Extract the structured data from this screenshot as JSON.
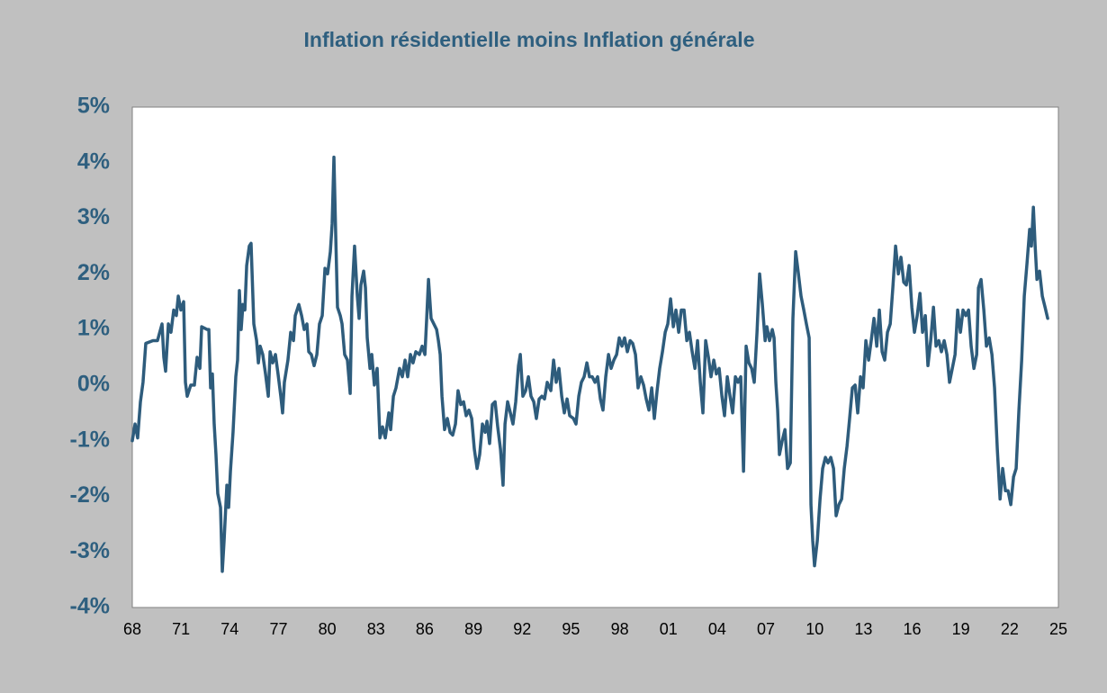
{
  "chart_data": {
    "type": "line",
    "title": "Inflation résidentielle moins Inflation générale",
    "color": "#2e5c7c",
    "grid": false,
    "xlim": [
      1968,
      2025
    ],
    "xticks": [
      {
        "value": 1968,
        "label": "68"
      },
      {
        "value": 1971,
        "label": "71"
      },
      {
        "value": 1974,
        "label": "74"
      },
      {
        "value": 1977,
        "label": "77"
      },
      {
        "value": 1980,
        "label": "80"
      },
      {
        "value": 1983,
        "label": "83"
      },
      {
        "value": 1986,
        "label": "86"
      },
      {
        "value": 1989,
        "label": "89"
      },
      {
        "value": 1992,
        "label": "92"
      },
      {
        "value": 1995,
        "label": "95"
      },
      {
        "value": 1998,
        "label": "98"
      },
      {
        "value": 2001,
        "label": "01"
      },
      {
        "value": 2004,
        "label": "04"
      },
      {
        "value": 2007,
        "label": "07"
      },
      {
        "value": 2010,
        "label": "10"
      },
      {
        "value": 2013,
        "label": "13"
      },
      {
        "value": 2016,
        "label": "16"
      },
      {
        "value": 2019,
        "label": "19"
      },
      {
        "value": 2022,
        "label": "22"
      },
      {
        "value": 2025,
        "label": "25"
      }
    ],
    "ylim": [
      -4,
      5
    ],
    "yticks": [
      {
        "value": 5,
        "label": "5%"
      },
      {
        "value": 4,
        "label": "4%"
      },
      {
        "value": 3,
        "label": "3%"
      },
      {
        "value": 2,
        "label": "2%"
      },
      {
        "value": 1,
        "label": "1%"
      },
      {
        "value": 0,
        "label": "0%"
      },
      {
        "value": -1,
        "label": "-1%"
      },
      {
        "value": -2,
        "label": "-2%"
      },
      {
        "value": -3,
        "label": "-3%"
      },
      {
        "value": -4,
        "label": "-4%"
      }
    ],
    "x": [
      1968.0,
      1968.17,
      1968.33,
      1968.5,
      1968.66,
      1968.83,
      1969.27,
      1969.55,
      1969.83,
      1969.94,
      1970.05,
      1970.22,
      1970.38,
      1970.55,
      1970.71,
      1970.83,
      1970.99,
      1971.16,
      1971.27,
      1971.38,
      1971.6,
      1971.82,
      1971.99,
      1972.16,
      1972.27,
      1972.6,
      1972.71,
      1972.82,
      1972.93,
      1973.04,
      1973.15,
      1973.26,
      1973.43,
      1973.54,
      1973.65,
      1973.82,
      1973.93,
      1974.04,
      1974.2,
      1974.37,
      1974.48,
      1974.59,
      1974.7,
      1974.81,
      1974.93,
      1975.04,
      1975.2,
      1975.31,
      1975.48,
      1975.65,
      1975.76,
      1975.87,
      1976.03,
      1976.2,
      1976.37,
      1976.48,
      1976.64,
      1976.81,
      1976.97,
      1977.14,
      1977.25,
      1977.36,
      1977.58,
      1977.75,
      1977.92,
      1978.03,
      1978.25,
      1978.42,
      1978.58,
      1978.75,
      1978.86,
      1979.02,
      1979.19,
      1979.36,
      1979.52,
      1979.69,
      1979.86,
      1980.02,
      1980.19,
      1980.3,
      1980.41,
      1980.52,
      1980.63,
      1980.8,
      1980.91,
      1981.07,
      1981.24,
      1981.41,
      1981.52,
      1981.68,
      1981.85,
      1981.96,
      1982.07,
      1982.24,
      1982.35,
      1982.46,
      1982.63,
      1982.74,
      1982.9,
      1983.07,
      1983.24,
      1983.4,
      1983.57,
      1983.79,
      1983.9,
      1984.07,
      1984.23,
      1984.45,
      1984.62,
      1984.79,
      1984.95,
      1985.12,
      1985.28,
      1985.45,
      1985.67,
      1985.84,
      1986.01,
      1986.12,
      1986.23,
      1986.39,
      1986.56,
      1986.73,
      1986.84,
      1986.95,
      1987.06,
      1987.22,
      1987.39,
      1987.56,
      1987.72,
      1987.89,
      1988.05,
      1988.22,
      1988.39,
      1988.55,
      1988.72,
      1988.89,
      1989.05,
      1989.22,
      1989.38,
      1989.55,
      1989.72,
      1989.83,
      1989.99,
      1990.16,
      1990.33,
      1990.49,
      1990.66,
      1990.82,
      1990.94,
      1991.1,
      1991.27,
      1991.43,
      1991.6,
      1991.77,
      1991.88,
      1992.04,
      1992.21,
      1992.38,
      1992.54,
      1992.71,
      1992.87,
      1993.04,
      1993.21,
      1993.37,
      1993.54,
      1993.76,
      1993.93,
      1994.09,
      1994.26,
      1994.43,
      1994.59,
      1994.76,
      1994.92,
      1995.15,
      1995.31,
      1995.48,
      1995.64,
      1995.81,
      1995.98,
      1996.14,
      1996.31,
      1996.48,
      1996.64,
      1996.81,
      1996.97,
      1997.14,
      1997.31,
      1997.47,
      1997.64,
      1997.81,
      1997.97,
      1998.14,
      1998.3,
      1998.47,
      1998.64,
      1998.8,
      1998.97,
      1999.13,
      1999.3,
      1999.47,
      1999.63,
      1999.8,
      1999.97,
      2000.13,
      2000.3,
      2000.46,
      2000.63,
      2000.8,
      2000.96,
      2001.13,
      2001.3,
      2001.46,
      2001.63,
      2001.79,
      2001.96,
      2002.13,
      2002.29,
      2002.46,
      2002.63,
      2002.79,
      2002.96,
      2003.12,
      2003.29,
      2003.46,
      2003.62,
      2003.79,
      2003.95,
      2004.12,
      2004.29,
      2004.45,
      2004.62,
      2004.79,
      2004.95,
      2005.12,
      2005.28,
      2005.45,
      2005.62,
      2005.78,
      2005.95,
      2006.12,
      2006.28,
      2006.45,
      2006.61,
      2006.78,
      2006.95,
      2007.06,
      2007.22,
      2007.39,
      2007.5,
      2007.61,
      2007.72,
      2007.83,
      2008.0,
      2008.17,
      2008.33,
      2008.5,
      2008.66,
      2008.83,
      2009.0,
      2009.16,
      2009.33,
      2009.49,
      2009.66,
      2009.77,
      2009.88,
      2009.99,
      2010.16,
      2010.33,
      2010.49,
      2010.66,
      2010.82,
      2010.99,
      2011.16,
      2011.32,
      2011.49,
      2011.66,
      2011.82,
      2011.99,
      2012.15,
      2012.32,
      2012.49,
      2012.65,
      2012.82,
      2012.98,
      2013.15,
      2013.32,
      2013.48,
      2013.65,
      2013.82,
      2013.98,
      2014.15,
      2014.31,
      2014.48,
      2014.65,
      2014.81,
      2014.98,
      2015.15,
      2015.31,
      2015.48,
      2015.64,
      2015.81,
      2015.98,
      2016.14,
      2016.31,
      2016.48,
      2016.64,
      2016.81,
      2016.97,
      2017.14,
      2017.31,
      2017.47,
      2017.64,
      2017.8,
      2017.97,
      2018.14,
      2018.3,
      2018.47,
      2018.64,
      2018.8,
      2018.97,
      2019.13,
      2019.3,
      2019.47,
      2019.63,
      2019.8,
      2019.97,
      2020.08,
      2020.24,
      2020.41,
      2020.57,
      2020.74,
      2020.91,
      2021.07,
      2021.24,
      2021.41,
      2021.57,
      2021.74,
      2021.9,
      2022.07,
      2022.24,
      2022.4,
      2022.57,
      2022.74,
      2022.9,
      2023.07,
      2023.23,
      2023.34,
      2023.46,
      2023.57,
      2023.68,
      2023.84,
      2024.01,
      2024.18,
      2024.34
    ],
    "values": [
      -1.0,
      -0.7,
      -0.95,
      -0.3,
      0.05,
      0.75,
      0.8,
      0.8,
      1.1,
      0.5,
      0.25,
      1.1,
      0.95,
      1.35,
      1.25,
      1.6,
      1.35,
      1.5,
      0.05,
      -0.2,
      0,
      0,
      0.5,
      0.3,
      1.05,
      1.0,
      1.0,
      -0.05,
      0.2,
      -0.7,
      -1.25,
      -1.95,
      -2.2,
      -3.35,
      -2.8,
      -1.8,
      -2.2,
      -1.55,
      -0.85,
      0.15,
      0.45,
      1.7,
      1.0,
      1.45,
      1.35,
      2.15,
      2.5,
      2.55,
      1.1,
      0.8,
      0.4,
      0.7,
      0.55,
      0.2,
      -0.2,
      0.6,
      0.4,
      0.55,
      0.2,
      -0.2,
      -0.5,
      0.05,
      0.45,
      0.95,
      0.8,
      1.25,
      1.45,
      1.25,
      1.0,
      1.1,
      0.6,
      0.55,
      0.35,
      0.55,
      1.1,
      1.25,
      2.1,
      2.0,
      2.4,
      2.9,
      4.1,
      2.7,
      1.4,
      1.25,
      1.1,
      0.55,
      0.45,
      -0.15,
      1.6,
      2.5,
      1.6,
      1.2,
      1.8,
      2.05,
      1.75,
      0.85,
      0.3,
      0.55,
      0,
      0.3,
      -0.95,
      -0.75,
      -0.95,
      -0.5,
      -0.8,
      -0.2,
      -0.05,
      0.3,
      0.15,
      0.45,
      0.15,
      0.55,
      0.4,
      0.6,
      0.55,
      0.7,
      0.55,
      1.2,
      1.9,
      1.2,
      1.1,
      1.0,
      0.8,
      0.55,
      -0.2,
      -0.8,
      -0.6,
      -0.85,
      -0.9,
      -0.7,
      -0.1,
      -0.35,
      -0.3,
      -0.55,
      -0.45,
      -0.6,
      -1.15,
      -1.5,
      -1.25,
      -0.7,
      -0.85,
      -0.65,
      -1.05,
      -0.35,
      -0.3,
      -0.75,
      -1.15,
      -1.8,
      -0.7,
      -0.3,
      -0.5,
      -0.7,
      -0.3,
      0.35,
      0.55,
      -0.2,
      -0.1,
      0.15,
      -0.2,
      -0.3,
      -0.6,
      -0.25,
      -0.2,
      -0.25,
      0.05,
      -0.1,
      0.45,
      0.05,
      0.3,
      -0.2,
      -0.5,
      -0.25,
      -0.55,
      -0.6,
      -0.7,
      -0.2,
      0.05,
      0.15,
      0.4,
      0.15,
      0.15,
      0.05,
      0.15,
      -0.25,
      -0.45,
      0.15,
      0.55,
      0.3,
      0.45,
      0.55,
      0.85,
      0.7,
      0.85,
      0.6,
      0.8,
      0.75,
      0.55,
      -0.05,
      0.15,
      0,
      -0.25,
      -0.45,
      -0.05,
      -0.6,
      -0.1,
      0.3,
      0.6,
      0.95,
      1.1,
      1.55,
      1.05,
      1.35,
      0.95,
      1.35,
      1.35,
      0.8,
      0.95,
      0.6,
      0.3,
      0.8,
      0.05,
      -0.5,
      0.8,
      0.5,
      0.15,
      0.45,
      0.2,
      0.3,
      -0.2,
      -0.55,
      0.15,
      -0.2,
      -0.5,
      0.15,
      0.05,
      0.15,
      -1.55,
      0.7,
      0.4,
      0.3,
      0.05,
      0.95,
      2.0,
      1.45,
      0.8,
      1.05,
      0.8,
      1.0,
      0.85,
      0.05,
      -0.45,
      -1.25,
      -1.0,
      -0.8,
      -1.5,
      -1.4,
      1.2,
      2.4,
      2.0,
      1.6,
      1.35,
      1.1,
      0.85,
      -2.15,
      -2.8,
      -3.25,
      -2.8,
      -2.05,
      -1.5,
      -1.3,
      -1.4,
      -1.3,
      -1.5,
      -2.35,
      -2.15,
      -2.05,
      -1.5,
      -1.1,
      -0.6,
      -0.05,
      0,
      -0.5,
      0.15,
      -0.05,
      0.8,
      0.45,
      0.8,
      1.2,
      0.7,
      1.35,
      0.6,
      0.45,
      0.95,
      1.1,
      1.75,
      2.5,
      2.0,
      2.3,
      1.85,
      1.8,
      2.15,
      1.4,
      0.95,
      1.25,
      1.65,
      0.95,
      1.25,
      0.35,
      0.8,
      1.4,
      0.7,
      0.8,
      0.6,
      0.8,
      0.55,
      0.05,
      0.3,
      0.55,
      1.35,
      0.95,
      1.35,
      1.25,
      1.35,
      0.7,
      0.3,
      0.55,
      1.75,
      1.9,
      1.35,
      0.7,
      0.85,
      0.55,
      -0.05,
      -1.15,
      -2.05,
      -1.5,
      -1.9,
      -1.9,
      -2.15,
      -1.65,
      -1.5,
      -0.45,
      0.45,
      1.6,
      2.2,
      2.8,
      2.5,
      3.2,
      2.5,
      1.9,
      2.05,
      1.6,
      1.4,
      1.2
    ]
  }
}
